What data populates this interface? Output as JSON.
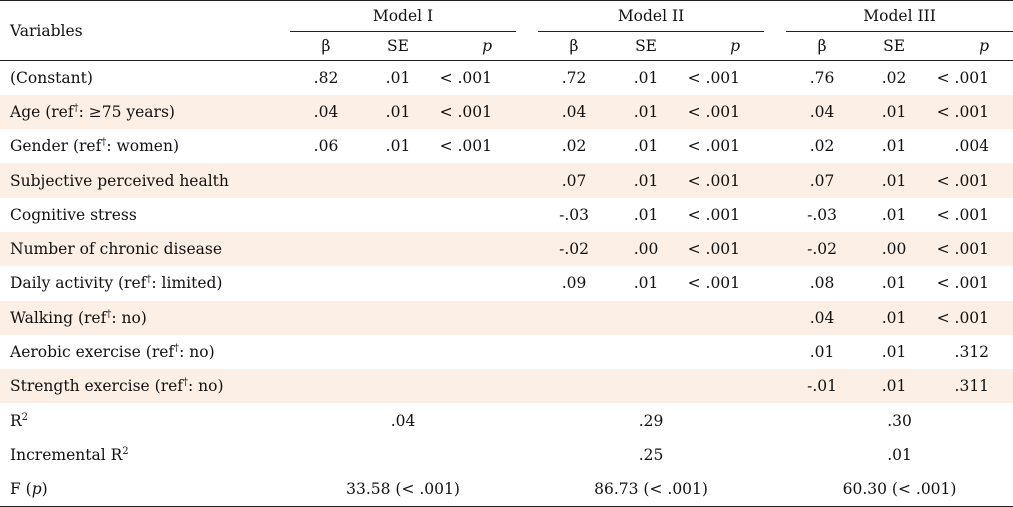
{
  "header": {
    "variables_label": "Variables",
    "models": [
      "Model I",
      "Model II",
      "Model III"
    ],
    "cols": {
      "beta": "β",
      "se": "SE",
      "p": "p"
    }
  },
  "rows": [
    {
      "label": "(Constant)",
      "m1": [
        ".82",
        ".01",
        "< .001"
      ],
      "m2": [
        ".72",
        ".01",
        "< .001"
      ],
      "m3": [
        ".76",
        ".02",
        "< .001"
      ]
    },
    {
      "label": "Age (ref†: ≥75 years)",
      "m1": [
        ".04",
        ".01",
        "< .001"
      ],
      "m2": [
        ".04",
        ".01",
        "< .001"
      ],
      "m3": [
        ".04",
        ".01",
        "< .001"
      ]
    },
    {
      "label": "Gender (ref†: women)",
      "m1": [
        ".06",
        ".01",
        "< .001"
      ],
      "m2": [
        ".02",
        ".01",
        "< .001"
      ],
      "m3": [
        ".02",
        ".01",
        ".004"
      ]
    },
    {
      "label": "Subjective perceived health",
      "m1": [
        "",
        "",
        ""
      ],
      "m2": [
        ".07",
        ".01",
        "< .001"
      ],
      "m3": [
        ".07",
        ".01",
        "< .001"
      ]
    },
    {
      "label": "Cognitive stress",
      "m1": [
        "",
        "",
        ""
      ],
      "m2": [
        "-.03",
        ".01",
        "< .001"
      ],
      "m3": [
        "-.03",
        ".01",
        "< .001"
      ]
    },
    {
      "label": "Number of chronic disease",
      "m1": [
        "",
        "",
        ""
      ],
      "m2": [
        "-.02",
        ".00",
        "< .001"
      ],
      "m3": [
        "-.02",
        ".00",
        "< .001"
      ]
    },
    {
      "label": "Daily activity (ref†: limited)",
      "m1": [
        "",
        "",
        ""
      ],
      "m2": [
        ".09",
        ".01",
        "< .001"
      ],
      "m3": [
        ".08",
        ".01",
        "< .001"
      ]
    },
    {
      "label": "Walking (ref†: no)",
      "m1": [
        "",
        "",
        ""
      ],
      "m2": [
        "",
        "",
        ""
      ],
      "m3": [
        ".04",
        ".01",
        "< .001"
      ]
    },
    {
      "label": "Aerobic exercise (ref†: no)",
      "m1": [
        "",
        "",
        ""
      ],
      "m2": [
        "",
        "",
        ""
      ],
      "m3": [
        ".01",
        ".01",
        ".312"
      ]
    },
    {
      "label": "Strength exercise (ref†: no)",
      "m1": [
        "",
        "",
        ""
      ],
      "m2": [
        "",
        "",
        ""
      ],
      "m3": [
        "-.01",
        ".01",
        ".311"
      ]
    }
  ],
  "summary": {
    "r2": {
      "label": "R2",
      "values": [
        ".04",
        ".29",
        ".30"
      ]
    },
    "inc_r2": {
      "label": "Incremental R2",
      "values": [
        "",
        ".25",
        ".01"
      ]
    },
    "f": {
      "label": "F (p)",
      "values": [
        "33.58 (< .001)",
        "86.73 (< .001)",
        "60.30 (< .001)"
      ]
    }
  }
}
